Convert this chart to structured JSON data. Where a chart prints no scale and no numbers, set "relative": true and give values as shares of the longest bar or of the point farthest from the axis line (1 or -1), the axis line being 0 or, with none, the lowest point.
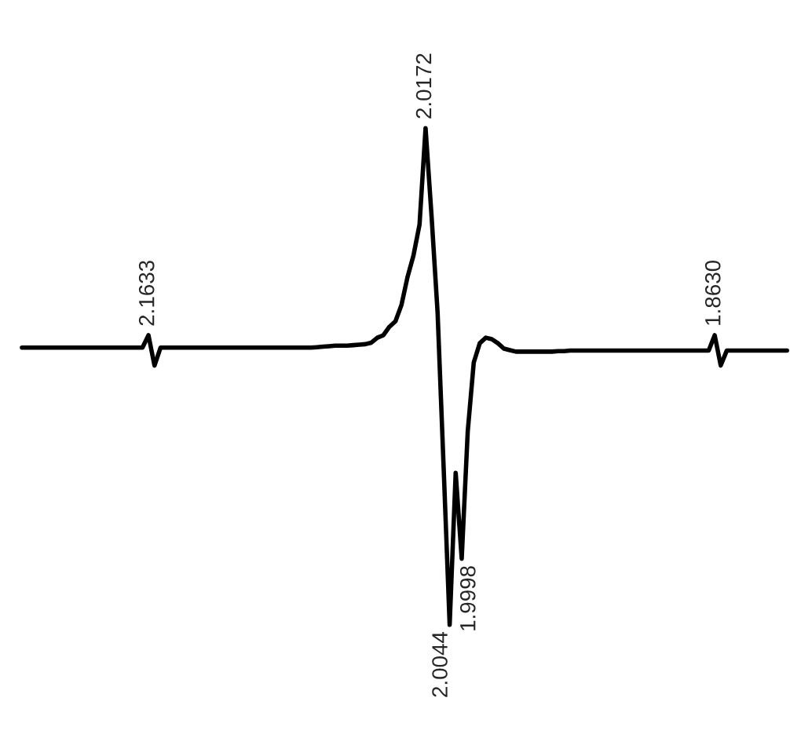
{
  "chart_data": {
    "type": "line",
    "relative": true,
    "color": "#000000",
    "categories": [
      null,
      null,
      null,
      null,
      null,
      null,
      null,
      null,
      null,
      null,
      null,
      null,
      null,
      null,
      null,
      null,
      null,
      null,
      null,
      null,
      null,
      null,
      null,
      null,
      null,
      null,
      null,
      null,
      null,
      null,
      null,
      null,
      null,
      null,
      null,
      null,
      null,
      null,
      null,
      null,
      null,
      null,
      null,
      null,
      null,
      null,
      null,
      null,
      null,
      null,
      null,
      null,
      null,
      null,
      null,
      null,
      null,
      null,
      null,
      null,
      null,
      null,
      null,
      null,
      null,
      null,
      null,
      null,
      null,
      null,
      null,
      null,
      null,
      null,
      null,
      null,
      null,
      null,
      null,
      null,
      null,
      null,
      null,
      null,
      null,
      null,
      null,
      null,
      null,
      null,
      null,
      null,
      null,
      null,
      null,
      null,
      null,
      null,
      null,
      null,
      null,
      null,
      null,
      null,
      null,
      null,
      null,
      null,
      null,
      null,
      null,
      null,
      null,
      null,
      null,
      null,
      null,
      null,
      null,
      null,
      null,
      null,
      null,
      null,
      null,
      null,
      null,
      null
    ],
    "values": [
      0.558,
      0.558,
      0.558,
      0.558,
      0.558,
      0.558,
      0.558,
      0.558,
      0.558,
      0.558,
      0.558,
      0.558,
      0.558,
      0.558,
      0.558,
      0.558,
      0.558,
      0.558,
      0.558,
      0.558,
      0.558,
      0.583,
      0.522,
      0.558,
      0.558,
      0.558,
      0.558,
      0.558,
      0.558,
      0.558,
      0.558,
      0.558,
      0.558,
      0.558,
      0.558,
      0.558,
      0.558,
      0.558,
      0.558,
      0.558,
      0.558,
      0.558,
      0.558,
      0.558,
      0.558,
      0.558,
      0.558,
      0.558,
      0.558,
      0.559,
      0.56,
      0.561,
      0.562,
      0.562,
      0.562,
      0.563,
      0.564,
      0.565,
      0.568,
      0.578,
      0.583,
      0.6,
      0.611,
      0.644,
      0.7,
      0.744,
      0.806,
      1.0,
      0.822,
      0.628,
      0.317,
      0.0,
      0.306,
      0.133,
      0.389,
      0.528,
      0.567,
      0.578,
      0.575,
      0.567,
      0.556,
      0.553,
      0.55,
      0.55,
      0.55,
      0.55,
      0.55,
      0.55,
      0.55,
      0.551,
      0.551,
      0.552,
      0.552,
      0.552,
      0.552,
      0.552,
      0.552,
      0.552,
      0.552,
      0.552,
      0.552,
      0.552,
      0.552,
      0.552,
      0.552,
      0.552,
      0.552,
      0.552,
      0.552,
      0.552,
      0.552,
      0.552,
      0.552,
      0.552,
      0.552,
      0.583,
      0.522,
      0.552,
      0.552,
      0.552,
      0.552,
      0.552,
      0.552,
      0.552,
      0.552,
      0.552,
      0.552,
      0.552
    ],
    "annotations": [
      "2.1633",
      "2.0172",
      "2.0044",
      "1.9998",
      "1.8630"
    ]
  }
}
